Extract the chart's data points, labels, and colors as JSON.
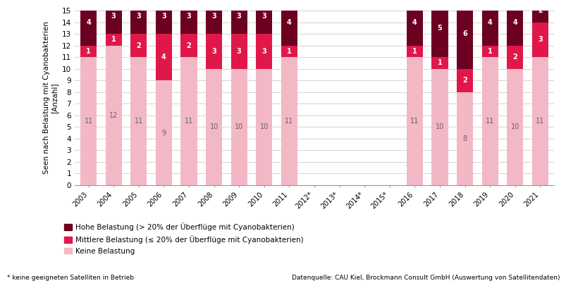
{
  "years": [
    "2003",
    "2004",
    "2005",
    "2006",
    "2007",
    "2008",
    "2009",
    "2010",
    "2011",
    "2012*",
    "2013*",
    "2014*",
    "2015*",
    "2016",
    "2017",
    "2018",
    "2019",
    "2020",
    "2021"
  ],
  "keine": [
    11,
    12,
    11,
    9,
    11,
    10,
    10,
    10,
    11,
    0,
    0,
    0,
    0,
    11,
    10,
    8,
    11,
    10,
    11
  ],
  "mittlere": [
    1,
    1,
    2,
    4,
    2,
    3,
    3,
    3,
    1,
    0,
    0,
    0,
    0,
    1,
    1,
    2,
    1,
    2,
    3
  ],
  "hohe": [
    4,
    3,
    3,
    3,
    3,
    3,
    3,
    3,
    4,
    0,
    0,
    0,
    0,
    4,
    5,
    6,
    4,
    4,
    2
  ],
  "color_keine": "#f2b8c6",
  "color_mittlere": "#e0184a",
  "color_hohe": "#6b0020",
  "ylim": [
    0,
    15
  ],
  "yticks": [
    0,
    1,
    2,
    3,
    4,
    5,
    6,
    7,
    8,
    9,
    10,
    11,
    12,
    13,
    14,
    15
  ],
  "ylabel": "Seen nach Belastung mit Cyanobakterien\n[Anzahl]",
  "legend_hohe": "Hohe Belastung (> 20% der Überflüge mit Cyanobakterien)",
  "legend_mittlere": "Mittlere Belastung (≤ 20% der Überflüge mit Cyanobakterien)",
  "legend_keine": "Keine Belastung",
  "footnote": "* keine geeigneten Satelliten in Betrieb",
  "source": "Datenquelle: CAU Kiel, Brockmann Consult GmbH (Auswertung von Satellitendaten)"
}
